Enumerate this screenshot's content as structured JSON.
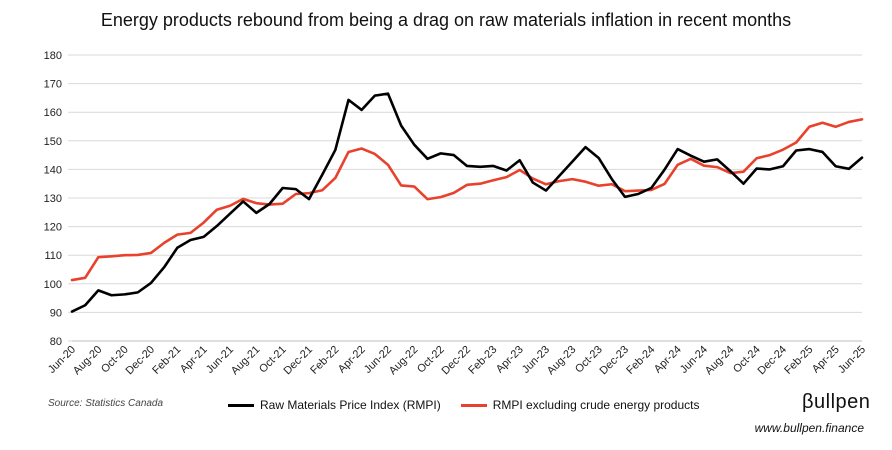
{
  "chart_data": {
    "type": "line",
    "title": "Energy products rebound from being a drag on raw materials inflation in recent months",
    "xlabel": "",
    "ylabel": "",
    "ylim": [
      80,
      180
    ],
    "yticks": [
      80,
      90,
      100,
      110,
      120,
      130,
      140,
      150,
      160,
      170,
      180
    ],
    "grid": "horizontal",
    "x": [
      "Jun-20",
      "Jul-20",
      "Aug-20",
      "Sep-20",
      "Oct-20",
      "Nov-20",
      "Dec-20",
      "Jan-21",
      "Feb-21",
      "Mar-21",
      "Apr-21",
      "May-21",
      "Jun-21",
      "Jul-21",
      "Aug-21",
      "Sep-21",
      "Oct-21",
      "Nov-21",
      "Dec-21",
      "Jan-22",
      "Feb-22",
      "Mar-22",
      "Apr-22",
      "May-22",
      "Jun-22",
      "Jul-22",
      "Aug-22",
      "Sep-22",
      "Oct-22",
      "Nov-22",
      "Dec-22",
      "Jan-23",
      "Feb-23",
      "Mar-23",
      "Apr-23",
      "May-23",
      "Jun-23",
      "Jul-23",
      "Aug-23",
      "Sep-23",
      "Oct-23",
      "Nov-23",
      "Dec-23",
      "Jan-24",
      "Feb-24",
      "Mar-24",
      "Apr-24",
      "May-24",
      "Jun-24",
      "Jul-24",
      "Aug-24",
      "Sep-24",
      "Oct-24",
      "Nov-24",
      "Dec-24",
      "Jan-25",
      "Feb-25",
      "Mar-25",
      "Apr-25",
      "May-25",
      "Jun-25"
    ],
    "xtick_labels": [
      "Jun-20",
      "Aug-20",
      "Oct-20",
      "Dec-20",
      "Feb-21",
      "Apr-21",
      "Jun-21",
      "Aug-21",
      "Oct-21",
      "Dec-21",
      "Feb-22",
      "Apr-22",
      "Jun-22",
      "Aug-22",
      "Oct-22",
      "Dec-22",
      "Feb-23",
      "Apr-23",
      "Jun-23",
      "Aug-23",
      "Oct-23",
      "Dec-23",
      "Feb-24",
      "Apr-24",
      "Jun-24",
      "Aug-24",
      "Oct-24",
      "Dec-24",
      "Feb-25",
      "Apr-25",
      "Jun-25"
    ],
    "series": [
      {
        "name": "Raw Materials Price Index (RMPI)",
        "color": "#000000",
        "values": [
          90.3,
          92.5,
          97.7,
          96.0,
          96.3,
          97.0,
          100.3,
          105.8,
          112.6,
          115.3,
          116.4,
          120.2,
          124.5,
          128.8,
          124.8,
          127.9,
          133.5,
          133.1,
          129.6,
          138.1,
          146.8,
          164.3,
          160.8,
          165.8,
          166.5,
          155.3,
          148.6,
          143.7,
          145.6,
          145.0,
          141.2,
          140.9,
          141.2,
          139.6,
          143.2,
          135.4,
          132.6,
          137.7,
          142.7,
          147.8,
          144.0,
          136.6,
          130.4,
          131.4,
          133.5,
          139.9,
          147.1,
          144.8,
          142.7,
          143.5,
          139.4,
          135.0,
          140.3,
          140.0,
          141.1,
          146.6,
          147.1,
          146.1,
          141.1,
          140.2,
          144.1
        ]
      },
      {
        "name": "RMPI excluding crude energy products",
        "color": "#e8412c",
        "values": [
          101.3,
          102.1,
          109.3,
          109.6,
          110.0,
          110.1,
          110.8,
          114.3,
          117.2,
          117.8,
          121.4,
          125.9,
          127.3,
          129.7,
          128.2,
          127.7,
          128.0,
          131.4,
          131.7,
          132.7,
          137.0,
          146.1,
          147.3,
          145.4,
          141.6,
          134.4,
          134.0,
          129.6,
          130.3,
          131.8,
          134.6,
          135.0,
          136.2,
          137.3,
          139.8,
          136.8,
          134.8,
          135.9,
          136.6,
          135.7,
          134.3,
          134.8,
          132.4,
          132.6,
          132.8,
          134.9,
          141.6,
          143.7,
          141.3,
          140.8,
          138.7,
          139.2,
          143.9,
          145.0,
          146.9,
          149.4,
          154.9,
          156.3,
          154.9,
          156.6,
          157.5
        ]
      }
    ],
    "legend_position": "bottom"
  },
  "source": "Source: Statistics Canada",
  "brand": {
    "logo": "βullpen",
    "url": "www.bullpen.finance"
  }
}
